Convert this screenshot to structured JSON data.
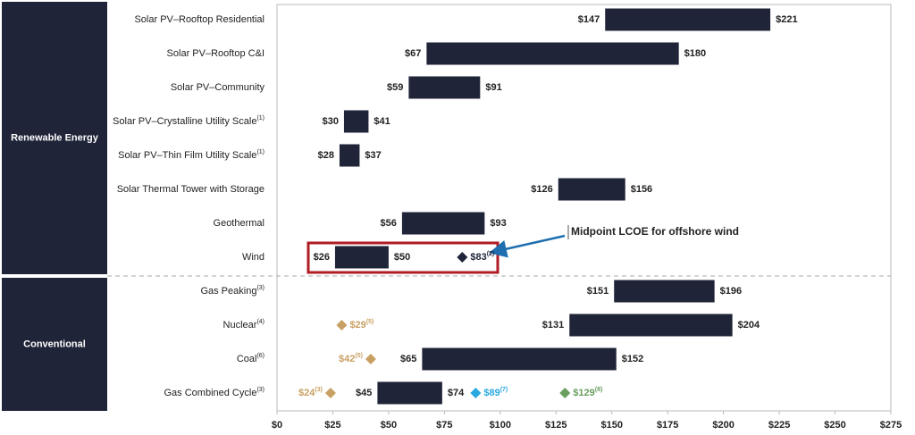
{
  "chart_data": {
    "type": "range-bar",
    "bar_color": "#1f2438",
    "panel_color": "#1f2438",
    "xlim": [
      0,
      275
    ],
    "xticks": [
      {
        "value": 0,
        "label": "$0"
      },
      {
        "value": 25,
        "label": "$25"
      },
      {
        "value": 50,
        "label": "$50"
      },
      {
        "value": 75,
        "label": "$75"
      },
      {
        "value": 100,
        "label": "$100"
      },
      {
        "value": 125,
        "label": "$125"
      },
      {
        "value": 150,
        "label": "$150"
      },
      {
        "value": 175,
        "label": "$175"
      },
      {
        "value": 200,
        "label": "$200"
      },
      {
        "value": 225,
        "label": "$225"
      },
      {
        "value": 250,
        "label": "$250"
      },
      {
        "value": 275,
        "label": "$275"
      }
    ],
    "grid": false,
    "annotation": "Midpoint LCOE for offshore wind",
    "groups": [
      {
        "label": "Renewable Energy",
        "rows": [
          {
            "label": "Solar PV–Rooftop Residential",
            "low": 147,
            "high": 221,
            "low_label": "$147",
            "high_label": "$221"
          },
          {
            "label": "Solar PV–Rooftop C&I",
            "low": 67,
            "high": 180,
            "low_label": "$67",
            "high_label": "$180"
          },
          {
            "label": "Solar PV–Community",
            "low": 59,
            "high": 91,
            "low_label": "$59",
            "high_label": "$91"
          },
          {
            "label": "Solar PV–Crystalline Utility Scale",
            "note": "(1)",
            "low": 30,
            "high": 41,
            "low_label": "$30",
            "high_label": "$41"
          },
          {
            "label": "Solar PV–Thin Film Utility Scale",
            "note": "(1)",
            "low": 28,
            "high": 37,
            "low_label": "$28",
            "high_label": "$37"
          },
          {
            "label": "Solar Thermal Tower with Storage",
            "low": 126,
            "high": 156,
            "low_label": "$126",
            "high_label": "$156"
          },
          {
            "label": "Geothermal",
            "low": 56,
            "high": 93,
            "low_label": "$56",
            "high_label": "$93"
          },
          {
            "label": "Wind",
            "low": 26,
            "high": 50,
            "low_label": "$26",
            "high_label": "$50",
            "markers": [
              {
                "value": 83,
                "label": "$83",
                "note": "(2)",
                "color": "#1f2438"
              }
            ]
          }
        ]
      },
      {
        "label": "Conventional",
        "rows": [
          {
            "label": "Gas Peaking",
            "note": "(3)",
            "low": 151,
            "high": 196,
            "low_label": "$151",
            "high_label": "$196"
          },
          {
            "label": "Nuclear",
            "note": "(4)",
            "low": 131,
            "high": 204,
            "low_label": "$131",
            "high_label": "$204",
            "markers": [
              {
                "value": 29,
                "label": "$29",
                "note": "(5)",
                "color": "#c9a063"
              }
            ]
          },
          {
            "label": "Coal",
            "note": "(6)",
            "low": 65,
            "high": 152,
            "low_label": "$65",
            "high_label": "$152",
            "markers": [
              {
                "value": 42,
                "label": "$42",
                "note": "(5)",
                "color": "#c9a063"
              }
            ]
          },
          {
            "label": "Gas Combined Cycle",
            "note": "(3)",
            "low": 45,
            "high": 74,
            "low_label": "$45",
            "high_label": "$74",
            "markers": [
              {
                "value": 24,
                "label": "$24",
                "note": "(3)",
                "color": "#c9a063"
              },
              {
                "value": 89,
                "label": "$89",
                "note": "(7)",
                "color": "#29a8e0"
              },
              {
                "value": 129,
                "label": "$129",
                "note": "(8)",
                "color": "#6a9e5f"
              }
            ]
          }
        ]
      }
    ]
  }
}
